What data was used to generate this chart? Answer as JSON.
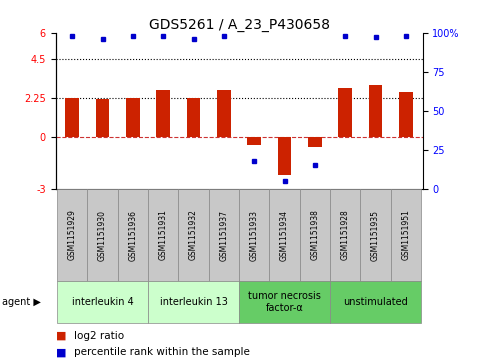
{
  "title": "GDS5261 / A_23_P430658",
  "samples": [
    "GSM1151929",
    "GSM1151930",
    "GSM1151936",
    "GSM1151931",
    "GSM1151932",
    "GSM1151937",
    "GSM1151933",
    "GSM1151934",
    "GSM1151938",
    "GSM1151928",
    "GSM1151935",
    "GSM1151951"
  ],
  "log2_ratio": [
    2.25,
    2.2,
    2.25,
    2.7,
    2.25,
    2.7,
    -0.5,
    -2.2,
    -0.6,
    2.8,
    3.0,
    2.6
  ],
  "percentile_rank": [
    98,
    96,
    98,
    98,
    96,
    98,
    18,
    5,
    15,
    98,
    97,
    98
  ],
  "group_defs": [
    {
      "label": "interleukin 4",
      "start": 0,
      "end": 2,
      "color": "#ccffcc"
    },
    {
      "label": "interleukin 13",
      "start": 3,
      "end": 5,
      "color": "#ccffcc"
    },
    {
      "label": "tumor necrosis\nfactor-α",
      "start": 6,
      "end": 8,
      "color": "#66cc66"
    },
    {
      "label": "unstimulated",
      "start": 9,
      "end": 11,
      "color": "#66cc66"
    }
  ],
  "ylim": [
    -3,
    6
  ],
  "yticks_left": [
    -3,
    0,
    2.25,
    4.5,
    6
  ],
  "yticks_right": [
    0,
    25,
    50,
    75,
    100
  ],
  "bar_color": "#cc2200",
  "percentile_color": "#0000cc",
  "background_color": "#ffffff",
  "sample_box_color": "#c8c8c8",
  "title_fontsize": 10,
  "tick_fontsize": 7,
  "sample_fontsize": 5.5,
  "group_fontsize": 7,
  "legend_fontsize": 7.5
}
